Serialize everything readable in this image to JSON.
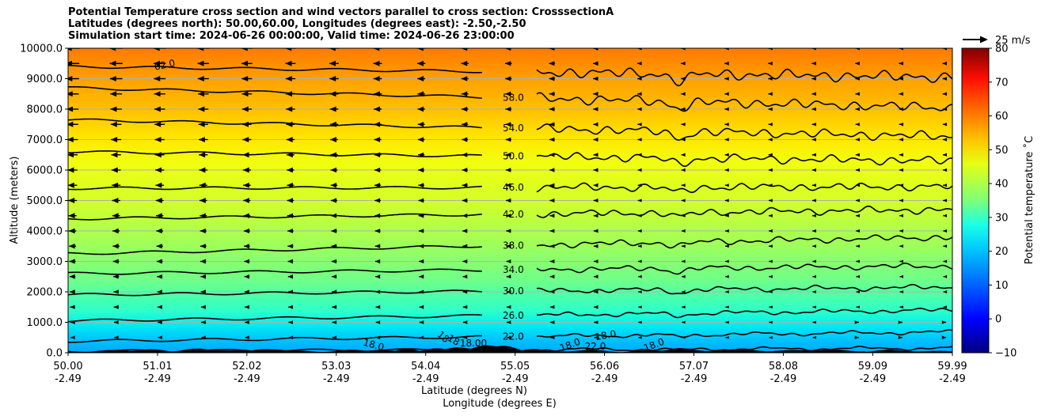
{
  "chart_data": {
    "type": "heatmap",
    "title_lines": [
      "Potential Temperature cross section and wind vectors parallel to cross section: CrosssectionA",
      "Latitudes (degrees north): 50.00,60.00, Longitudes (degrees east): -2.50,-2.50",
      "Simulation start time: 2024-06-26 00:00:00, Valid time: 2024-06-26 23:00:00"
    ],
    "xlabel_1": "Latitude (degrees N)",
    "xlabel_2": "Longitude (degrees E)",
    "ylabel": "Altitude (meters)",
    "x_ticks_lat": [
      "50.00",
      "51.01",
      "52.02",
      "53.03",
      "54.04",
      "55.05",
      "56.06",
      "57.07",
      "58.08",
      "59.09",
      "59.99"
    ],
    "x_ticks_lon": [
      "-2.49",
      "-2.49",
      "-2.49",
      "-2.49",
      "-2.49",
      "-2.49",
      "-2.49",
      "-2.49",
      "-2.49",
      "-2.49",
      "-2.49"
    ],
    "y_ticks": [
      "0.0",
      "1000.0",
      "2000.0",
      "3000.0",
      "4000.0",
      "5000.0",
      "6000.0",
      "7000.0",
      "8000.0",
      "9000.0",
      "10000.0"
    ],
    "ylim": [
      0,
      10000
    ],
    "xlim": [
      50.0,
      59.99
    ],
    "grid": "horizontal lines",
    "colorbar": {
      "label": "Potential temperature $^\\circ$C",
      "label_text": "Potential temperature ˚C",
      "range": [
        -10,
        80
      ],
      "ticks": [
        "−10",
        "0",
        "10",
        "20",
        "30",
        "40",
        "50",
        "60",
        "70",
        "80"
      ],
      "colormap": "jet"
    },
    "wind_key": "25 m/s",
    "contour_levels": [
      {
        "value": 18,
        "label": "18.0",
        "alt_left": 50,
        "alt_right": 150
      },
      {
        "value": 22,
        "label": "22.0",
        "alt_left": 380,
        "alt_right": 680
      },
      {
        "value": 26,
        "label": "26.0",
        "alt_left": 1050,
        "alt_right": 1400
      },
      {
        "value": 30,
        "label": "30.0",
        "alt_left": 1900,
        "alt_right": 2150
      },
      {
        "value": 34,
        "label": "34.0",
        "alt_left": 2600,
        "alt_right": 2850
      },
      {
        "value": 38,
        "label": "38.0",
        "alt_left": 3250,
        "alt_right": 3800
      },
      {
        "value": 42,
        "label": "42.0",
        "alt_left": 4400,
        "alt_right": 4700
      },
      {
        "value": 46,
        "label": "46.0",
        "alt_left": 5400,
        "alt_right": 5450
      },
      {
        "value": 50,
        "label": "50.0",
        "alt_left": 6600,
        "alt_right": 6300
      },
      {
        "value": 54,
        "label": "54.0",
        "alt_left": 7650,
        "alt_right": 7100
      },
      {
        "value": 58,
        "label": "58.0",
        "alt_left": 8700,
        "alt_right": 8050
      },
      {
        "value": 62,
        "label": "62.0",
        "alt_left": 9400,
        "alt_right": 9050
      }
    ],
    "terrain_label_fragments": [
      "18.0",
      "18",
      "18",
      "18.00",
      "18.0",
      "22.0",
      "18.0",
      "18.0"
    ]
  }
}
